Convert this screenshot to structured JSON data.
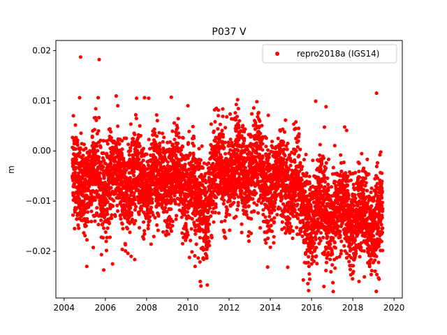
{
  "chart_data": {
    "type": "scatter",
    "title": "P037 V",
    "xlabel": "",
    "ylabel": "m",
    "xlim": [
      2003.6,
      2020.4
    ],
    "ylim": [
      -0.0293,
      0.022
    ],
    "xticks": [
      2004,
      2006,
      2008,
      2010,
      2012,
      2014,
      2016,
      2018,
      2020
    ],
    "xtick_labels": [
      "2004",
      "2006",
      "2008",
      "2010",
      "2012",
      "2014",
      "2016",
      "2018",
      "2020"
    ],
    "yticks": [
      -0.02,
      -0.01,
      0.0,
      0.01,
      0.02
    ],
    "ytick_labels": [
      "−0.02",
      "−0.01",
      "0.00",
      "0.01",
      "0.02"
    ],
    "grid": false,
    "legend": {
      "position": "top-right",
      "entries": [
        "repro2018a (IGS14)"
      ]
    },
    "series": [
      {
        "name": "repro2018a (IGS14)",
        "color": "#ff0000",
        "marker": "circle",
        "x_start": 2004.4,
        "x_end": 2019.45,
        "points": [
          [
            2004.8,
            0.0187
          ],
          [
            2005.7,
            0.0182
          ],
          [
            2005.65,
            0.0106
          ],
          [
            2004.75,
            0.0106
          ],
          [
            2007.9,
            0.0106
          ],
          [
            2008.1,
            0.0105
          ],
          [
            2009.2,
            0.0107
          ],
          [
            2019.15,
            0.0115
          ],
          [
            2016.2,
            0.0099
          ],
          [
            2010.0,
            0.009
          ],
          [
            2016.7,
            0.0088
          ],
          [
            2006.6,
            0.009
          ],
          [
            2011.3,
            0.0082
          ],
          [
            2012.3,
            0.0076
          ],
          [
            2013.9,
            0.0071
          ],
          [
            2017.7,
            0.0041
          ],
          [
            2005.1,
            -0.023
          ],
          [
            2006.35,
            -0.0225
          ],
          [
            2010.6,
            -0.026
          ],
          [
            2016.6,
            -0.027
          ],
          [
            2018.3,
            -0.026
          ],
          [
            2015.6,
            -0.0257
          ],
          [
            2019.25,
            -0.0253
          ],
          [
            2010.35,
            -0.023
          ],
          [
            2007.25,
            -0.021
          ],
          [
            2004.45,
            0.007
          ],
          [
            2019.2,
            -0.0054
          ],
          [
            2012.1,
            -0.003
          ],
          [
            2008.5,
            -0.006
          ],
          [
            2014.5,
            -0.007
          ],
          [
            2016.9,
            -0.013
          ],
          [
            2018.5,
            -0.0145
          ]
        ]
      }
    ]
  }
}
